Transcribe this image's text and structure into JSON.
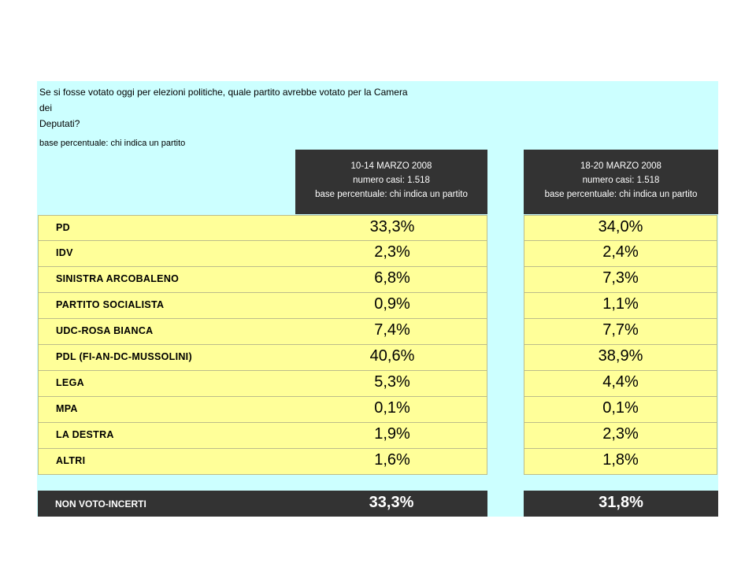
{
  "question_line1": "Se si fosse votato oggi per elezioni politiche, quale partito avrebbe votato per la Camera dei",
  "question_line2": "Deputati?",
  "base_note": "base percentuale: chi indica un partito",
  "columns": [
    {
      "date": "10-14 MARZO 2008",
      "cases": "numero casi: 1.518",
      "base": "base percentuale: chi indica un partito"
    },
    {
      "date": "18-20 MARZO 2008",
      "cases": "numero casi: 1.518",
      "base": "base percentuale: chi indica un partito"
    }
  ],
  "rows": [
    {
      "party": "PD",
      "v1": "33,3%",
      "v2": "34,0%"
    },
    {
      "party": "IDV",
      "v1": "2,3%",
      "v2": "2,4%"
    },
    {
      "party": "SINISTRA ARCOBALENO",
      "v1": "6,8%",
      "v2": "7,3%"
    },
    {
      "party": "PARTITO SOCIALISTA",
      "v1": "0,9%",
      "v2": "1,1%"
    },
    {
      "party": "UDC-ROSA BIANCA",
      "v1": "7,4%",
      "v2": "7,7%"
    },
    {
      "party": "PDL (FI-AN-DC-MUSSOLINI)",
      "v1": "40,6%",
      "v2": "38,9%"
    },
    {
      "party": "LEGA",
      "v1": "5,3%",
      "v2": "4,4%"
    },
    {
      "party": "MPA",
      "v1": "0,1%",
      "v2": "0,1%"
    },
    {
      "party": "LA DESTRA",
      "v1": "1,9%",
      "v2": "2,3%"
    },
    {
      "party": "ALTRI",
      "v1": "1,6%",
      "v2": "1,8%"
    }
  ],
  "non_voto": {
    "label": "NON VOTO-INCERTI",
    "v1": "33,3%",
    "v2": "31,8%"
  },
  "colors": {
    "panel": "#ccffff",
    "header": "#333333",
    "row": "#ffff99"
  }
}
